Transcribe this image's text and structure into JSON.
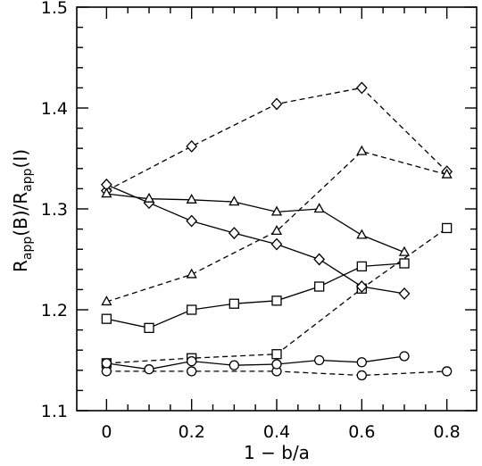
{
  "chart_data": {
    "type": "line",
    "xlabel": "1 − b/a",
    "ylabel": {
      "main": "R",
      "sub1": "app",
      "mid": "(B)/R",
      "sub2": "app",
      "tail": "(I)"
    },
    "xlim": [
      -0.07,
      0.87
    ],
    "ylim": [
      1.1,
      1.5
    ],
    "xticks": [
      0,
      0.2,
      0.4,
      0.6,
      0.8
    ],
    "xtick_labels": [
      "0",
      "0.2",
      "0.4",
      "0.6",
      "0.8"
    ],
    "yticks": [
      1.1,
      1.2,
      1.3,
      1.4,
      1.5
    ],
    "ytick_labels": [
      "1.1",
      "1.2",
      "1.3",
      "1.4",
      "1.5"
    ],
    "grid": false,
    "series": [
      {
        "marker": "diamond",
        "style": "dashed",
        "x": [
          0,
          0.2,
          0.4,
          0.6,
          0.8
        ],
        "y": [
          1.318,
          1.362,
          1.404,
          1.42,
          1.337
        ]
      },
      {
        "marker": "triangle",
        "style": "dashed",
        "x": [
          0,
          0.2,
          0.4,
          0.6,
          0.8
        ],
        "y": [
          1.208,
          1.235,
          1.278,
          1.357,
          1.334
        ]
      },
      {
        "marker": "square",
        "style": "dashed",
        "x": [
          0,
          0.2,
          0.4,
          0.6,
          0.8
        ],
        "y": [
          1.147,
          1.152,
          1.156,
          1.221,
          1.281
        ]
      },
      {
        "marker": "circle",
        "style": "dashed",
        "x": [
          0,
          0.2,
          0.4,
          0.6,
          0.8
        ],
        "y": [
          1.139,
          1.139,
          1.139,
          1.135,
          1.139
        ]
      },
      {
        "marker": "diamond",
        "style": "solid",
        "x": [
          0,
          0.1,
          0.2,
          0.3,
          0.4,
          0.5,
          0.6,
          0.7
        ],
        "y": [
          1.324,
          1.306,
          1.288,
          1.276,
          1.265,
          1.25,
          1.223,
          1.216
        ]
      },
      {
        "marker": "triangle",
        "style": "solid",
        "x": [
          0,
          0.1,
          0.2,
          0.3,
          0.4,
          0.5,
          0.6,
          0.7
        ],
        "y": [
          1.315,
          1.31,
          1.309,
          1.307,
          1.297,
          1.3,
          1.274,
          1.257
        ]
      },
      {
        "marker": "square",
        "style": "solid",
        "x": [
          0,
          0.1,
          0.2,
          0.3,
          0.4,
          0.5,
          0.6,
          0.7
        ],
        "y": [
          1.191,
          1.182,
          1.2,
          1.206,
          1.209,
          1.223,
          1.243,
          1.246
        ]
      },
      {
        "marker": "circle",
        "style": "solid",
        "x": [
          0,
          0.1,
          0.2,
          0.3,
          0.4,
          0.5,
          0.6,
          0.7
        ],
        "y": [
          1.147,
          1.141,
          1.149,
          1.145,
          1.146,
          1.15,
          1.148,
          1.154
        ]
      }
    ]
  }
}
